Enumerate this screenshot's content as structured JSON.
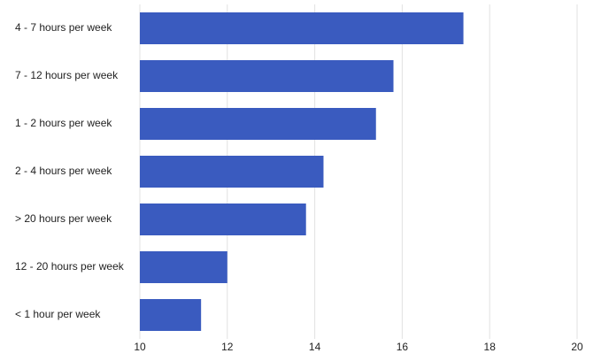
{
  "chart_data": {
    "type": "bar",
    "orientation": "horizontal",
    "categories": [
      "4 - 7 hours per week",
      "7 - 12 hours per week",
      "1 - 2 hours per week",
      "2 - 4 hours per week",
      "> 20 hours per week",
      "12 - 20 hours per week",
      "< 1 hour per week"
    ],
    "values": [
      17.4,
      15.8,
      15.4,
      14.2,
      13.8,
      12.0,
      11.4
    ],
    "color": "#3a5bbf",
    "xlim": [
      10,
      20
    ],
    "xticks": [
      10,
      12,
      14,
      16,
      18,
      20
    ],
    "grid": true
  }
}
